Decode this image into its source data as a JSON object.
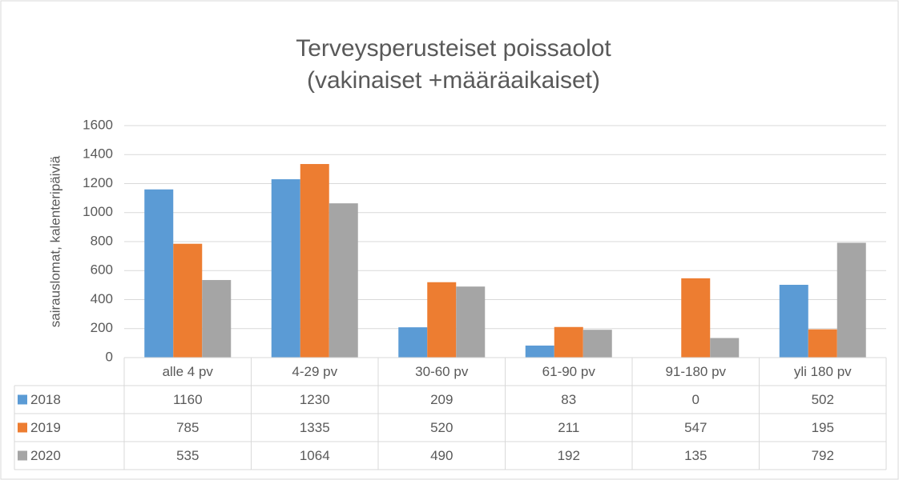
{
  "chart_data": {
    "type": "bar",
    "title": "Terveysperusteiset poissaolot",
    "subtitle": "(vakinaiset +määräaikaiset)",
    "y_label": "sairauslomat, kalenteripäiviä",
    "categories": [
      "alle 4 pv",
      "4-29 pv",
      "30-60 pv",
      "61-90 pv",
      "91-180 pv",
      "yli 180 pv"
    ],
    "series": [
      {
        "name": "2018",
        "color": "#5b9bd5",
        "values": [
          1160,
          1230,
          209,
          83,
          0,
          502
        ]
      },
      {
        "name": "2019",
        "color": "#ed7d31",
        "values": [
          785,
          1335,
          520,
          211,
          547,
          195
        ]
      },
      {
        "name": "2020",
        "color": "#a5a5a5",
        "values": [
          535,
          1064,
          490,
          192,
          135,
          792
        ]
      }
    ],
    "ylim": [
      0,
      1600
    ],
    "yticks": [
      0,
      200,
      400,
      600,
      800,
      1000,
      1200,
      1400,
      1600
    ],
    "grid": true
  }
}
